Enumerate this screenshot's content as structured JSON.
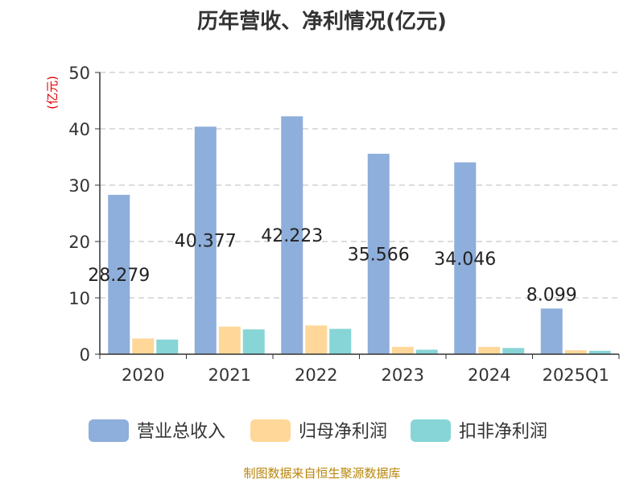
{
  "chart_data": {
    "type": "bar",
    "title": "历年营收、净利情况(亿元)",
    "ylabel": "(亿元)",
    "categories": [
      "2020",
      "2021",
      "2022",
      "2023",
      "2024",
      "2025Q1"
    ],
    "ylim": [
      0,
      50
    ],
    "yticks": [
      "0",
      "10",
      "20",
      "30",
      "40",
      "50"
    ],
    "grid": true,
    "legend_position": "bottom",
    "series": [
      {
        "name": "营业总收入",
        "color": "#8eaedb",
        "values": [
          28.279,
          40.377,
          42.223,
          35.566,
          34.046,
          8.099
        ]
      },
      {
        "name": "归母净利润",
        "color": "#ffd799",
        "values": [
          2.8,
          4.9,
          5.1,
          1.3,
          1.3,
          0.7
        ]
      },
      {
        "name": "扣非净利润",
        "color": "#87d5d6",
        "values": [
          2.6,
          4.4,
          4.5,
          0.8,
          1.1,
          0.6
        ]
      }
    ],
    "data_labels": [
      "28.279",
      "40.377",
      "42.223",
      "35.566",
      "34.046",
      "8.099"
    ]
  },
  "source": "制图数据来自恒生聚源数据库"
}
